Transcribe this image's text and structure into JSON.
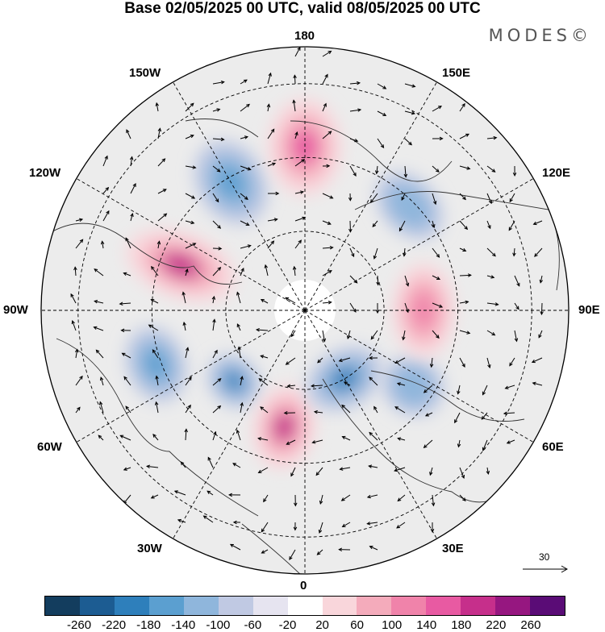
{
  "title": "Base 02/05/2025 00 UTC, valid 08/05/2025 00 UTC",
  "brand": "MODES©",
  "map": {
    "projection": "north-polar-stereographic",
    "longitude_labels": {
      "top": "180",
      "bottom": "0",
      "left": "90W",
      "right": "90E",
      "upper_left_1": "150W",
      "upper_left_2": "120W",
      "upper_right_1": "150E",
      "upper_right_2": "120E",
      "lower_left_1": "60W",
      "lower_left_2": "30W",
      "lower_right_1": "60E",
      "lower_right_2": "30E"
    },
    "reference_vector": "30",
    "anomaly_centers": [
      {
        "sign": "negative",
        "lon": "150W",
        "value": -160
      },
      {
        "sign": "positive",
        "lon": "180",
        "value": 160
      },
      {
        "sign": "positive",
        "lon": "110W",
        "value": 200
      },
      {
        "sign": "negative",
        "lon": "70W",
        "value": -160
      },
      {
        "sign": "negative",
        "lon": "45W",
        "value": -180
      },
      {
        "sign": "positive",
        "lon": "10W",
        "value": 220
      },
      {
        "sign": "negative",
        "lon": "30E",
        "value": -200
      },
      {
        "sign": "negative",
        "lon": "55E",
        "value": -120
      },
      {
        "sign": "positive",
        "lon": "90E",
        "value": 130
      },
      {
        "sign": "negative",
        "lon": "135E",
        "value": -100
      }
    ]
  },
  "colorbar": {
    "colors": [
      "#133d5e",
      "#1c5c92",
      "#2e7fbb",
      "#5b9fd0",
      "#8fb6dc",
      "#c0c9e3",
      "#e6e4f0",
      "#ffffff",
      "#f9d6db",
      "#f4abbb",
      "#f083aa",
      "#e85aa2",
      "#c62f8b",
      "#961780",
      "#5a0c76"
    ],
    "ticks": [
      "-260",
      "-220",
      "-180",
      "-140",
      "-100",
      "-60",
      "-20",
      "20",
      "60",
      "100",
      "140",
      "180",
      "220",
      "260"
    ]
  }
}
